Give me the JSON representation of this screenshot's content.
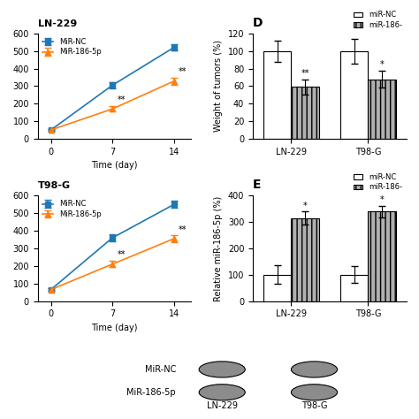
{
  "chart_data": [
    {
      "type": "line",
      "title": "LN-229",
      "xlabel": "Time (day)",
      "x": [
        0,
        7,
        14
      ],
      "xlim": [
        -1.5,
        16
      ],
      "xticks": [
        0,
        7,
        14
      ],
      "ylim": [
        0,
        600
      ],
      "yticks": [
        0,
        100,
        200,
        300,
        400,
        500,
        600
      ],
      "series": [
        {
          "name": "MiR-NC",
          "marker": "square",
          "values": [
            50,
            305,
            520
          ],
          "errors": [
            5,
            18,
            18
          ]
        },
        {
          "name": "MiR-186-5p",
          "marker": "triangle",
          "values": [
            50,
            170,
            328
          ],
          "errors": [
            5,
            15,
            22
          ]
        }
      ],
      "legend": "upper left",
      "annotations": [
        {
          "text": "**",
          "x": 7,
          "y": 170
        },
        {
          "text": "**",
          "x": 14,
          "y": 328
        }
      ]
    },
    {
      "type": "line",
      "title": "T98-G",
      "xlabel": "Time (day)",
      "x": [
        0,
        7,
        14
      ],
      "xlim": [
        -1.5,
        16
      ],
      "xticks": [
        0,
        7,
        14
      ],
      "ylim": [
        0,
        600
      ],
      "yticks": [
        0,
        100,
        200,
        300,
        400,
        500,
        600
      ],
      "series": [
        {
          "name": "MiR-NC",
          "marker": "square",
          "values": [
            65,
            360,
            550
          ],
          "errors": [
            8,
            22,
            20
          ]
        },
        {
          "name": "MiR-186-5p",
          "marker": "triangle",
          "values": [
            65,
            210,
            355
          ],
          "errors": [
            8,
            18,
            22
          ]
        }
      ],
      "legend": "upper left",
      "annotations": [
        {
          "text": "**",
          "x": 7,
          "y": 210
        },
        {
          "text": "**",
          "x": 14,
          "y": 355
        }
      ]
    },
    {
      "type": "bar",
      "title": "D",
      "ylabel": "Weight of tumors (%)",
      "categories": [
        "LN-229",
        "T98-G"
      ],
      "ylim": [
        0,
        120
      ],
      "yticks": [
        0,
        20,
        40,
        60,
        80,
        100,
        120
      ],
      "series": [
        {
          "name": "miR-NC",
          "color": "white",
          "values": [
            100,
            100
          ],
          "errors": [
            12,
            14
          ]
        },
        {
          "name": "miR-186-",
          "color": "#b0b0b0",
          "values": [
            59,
            68
          ],
          "errors": [
            9,
            10
          ]
        }
      ],
      "legend": "upper right",
      "annotations": [
        {
          "text": "**",
          "category": "LN-229",
          "series": "miR-186-"
        },
        {
          "text": "*",
          "category": "T98-G",
          "series": "miR-186-"
        }
      ]
    },
    {
      "type": "bar",
      "title": "E",
      "ylabel": "Relative miR-186-5p (%)",
      "categories": [
        "LN-229",
        "T98-G"
      ],
      "ylim": [
        0,
        400
      ],
      "yticks": [
        0,
        100,
        200,
        300,
        400
      ],
      "series": [
        {
          "name": "miR-NC",
          "color": "white",
          "values": [
            100,
            100
          ],
          "errors": [
            35,
            32
          ]
        },
        {
          "name": "miR-186-",
          "color": "#b0b0b0",
          "values": [
            315,
            340
          ],
          "errors": [
            25,
            22
          ]
        }
      ],
      "legend": "upper right",
      "annotations": [
        {
          "text": "*",
          "category": "LN-229",
          "series": "miR-186-"
        },
        {
          "text": "*",
          "category": "T98-G",
          "series": "miR-186-"
        }
      ]
    },
    {
      "type": "image_grid",
      "categories": [
        "LN-229",
        "T98-G"
      ],
      "series": [
        {
          "name": "MiR-NC"
        },
        {
          "name": "MiR-186-5p"
        }
      ]
    }
  ]
}
